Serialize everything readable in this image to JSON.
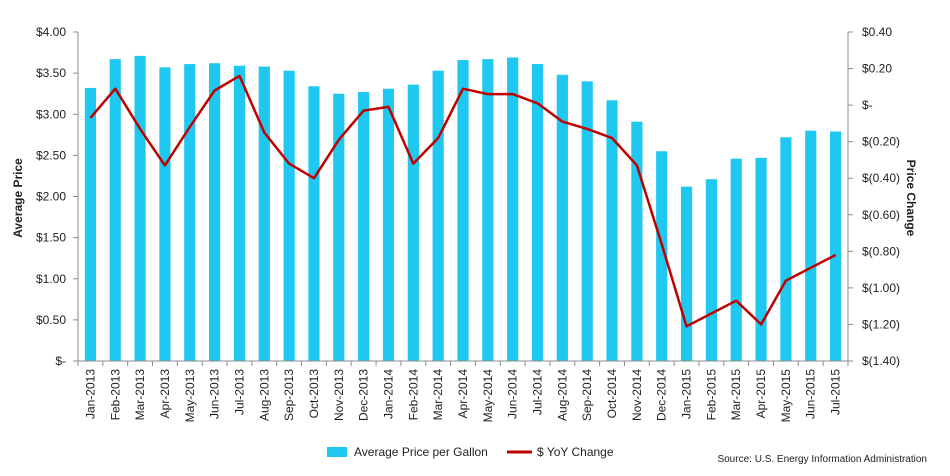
{
  "chart_data": {
    "type": "bar",
    "categories": [
      "Jan-2013",
      "Feb-2013",
      "Mar-2013",
      "Apr-2013",
      "May-2013",
      "Jun-2013",
      "Jul-2013",
      "Aug-2013",
      "Sep-2013",
      "Oct-2013",
      "Nov-2013",
      "Dec-2013",
      "Jan-2014",
      "Feb-2014",
      "Mar-2014",
      "Apr-2014",
      "May-2014",
      "Jun-2014",
      "Jul-2014",
      "Aug-2014",
      "Sep-2014",
      "Oct-2014",
      "Nov-2014",
      "Dec-2014",
      "Jan-2015",
      "Feb-2015",
      "Mar-2015",
      "Apr-2015",
      "May-2015",
      "Jun-2015",
      "Jul-2015"
    ],
    "series": [
      {
        "name": "Average Price per Gallon",
        "kind": "bar",
        "axis": "left",
        "color": "#1EC8F0",
        "values": [
          3.32,
          3.67,
          3.71,
          3.57,
          3.61,
          3.62,
          3.59,
          3.58,
          3.53,
          3.34,
          3.25,
          3.27,
          3.31,
          3.36,
          3.53,
          3.66,
          3.67,
          3.69,
          3.61,
          3.48,
          3.4,
          3.17,
          2.91,
          2.55,
          2.12,
          2.21,
          2.46,
          2.47,
          2.72,
          2.8,
          2.79
        ]
      },
      {
        "name": "$ YoY Change",
        "kind": "line",
        "axis": "right",
        "color": "#C00000",
        "values": [
          -0.07,
          0.09,
          -0.13,
          -0.33,
          -0.12,
          0.08,
          0.16,
          -0.15,
          -0.32,
          -0.4,
          -0.19,
          -0.03,
          -0.01,
          -0.32,
          -0.18,
          0.09,
          0.06,
          0.06,
          0.01,
          -0.09,
          -0.13,
          -0.18,
          -0.33,
          -0.76,
          -1.21,
          -1.14,
          -1.07,
          -1.2,
          -0.96,
          -0.89,
          -0.82
        ]
      }
    ],
    "ylabel": "Average Price",
    "y2label": "Price Change",
    "ylim": [
      0,
      4
    ],
    "y2lim": [
      -1.4,
      0.4
    ],
    "yticks": [
      0,
      0.5,
      1,
      1.5,
      2,
      2.5,
      3,
      3.5,
      4
    ],
    "yticklabels": [
      "$-",
      "$0.50",
      "$1.00",
      "$1.50",
      "$2.00",
      "$2.50",
      "$3.00",
      "$3.50",
      "$4.00"
    ],
    "y2ticks": [
      0.4,
      0.2,
      0,
      -0.2,
      -0.4,
      -0.6,
      -0.8,
      -1.0,
      -1.2,
      -1.4
    ],
    "y2ticklabels": [
      "$0.40",
      "$0.20",
      "$-",
      "$(0.20)",
      "$(0.40)",
      "$(0.60)",
      "$(0.80)",
      "$(1.00)",
      "$(1.20)",
      "$(1.40)"
    ],
    "legend_position": "bottom",
    "grid": false
  },
  "source": "Source: U.S. Energy Information Administration"
}
